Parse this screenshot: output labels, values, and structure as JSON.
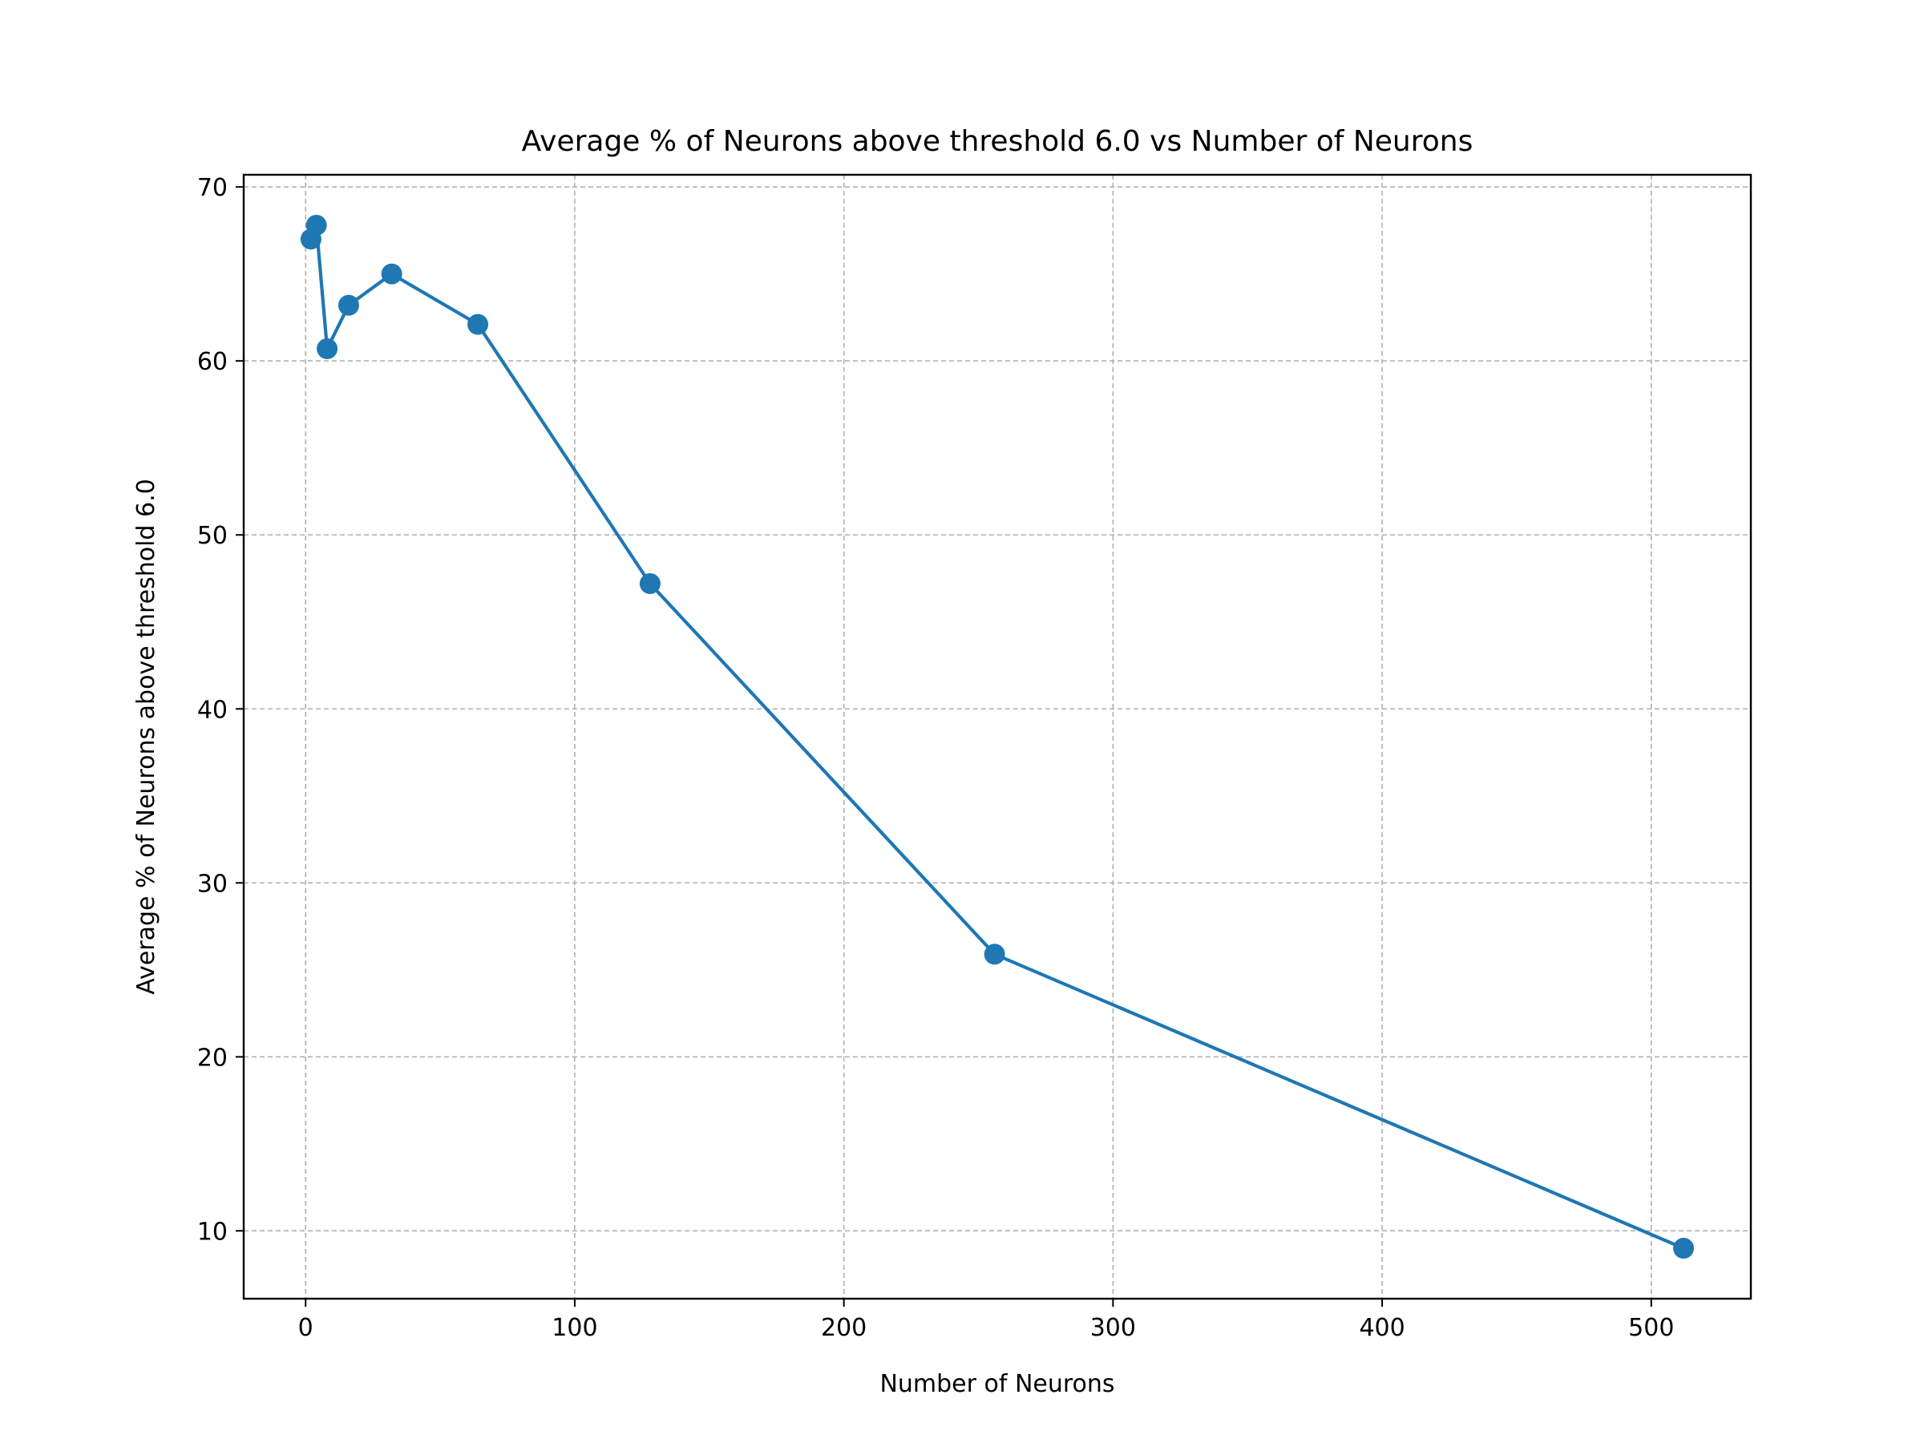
{
  "chart_data": {
    "type": "line",
    "title": "Average % of Neurons above threshold 6.0 vs Number of Neurons",
    "xlabel": "Number of Neurons",
    "ylabel": "Average % of Neurons above threshold 6.0",
    "xlim": [
      -23,
      537
    ],
    "ylim": [
      6.1,
      70.7
    ],
    "xticks": [
      0,
      100,
      200,
      300,
      400,
      500
    ],
    "yticks": [
      10,
      20,
      30,
      40,
      50,
      60,
      70
    ],
    "grid": true,
    "series": [
      {
        "color": "#1f77b4",
        "marker": "circle",
        "x": [
          2,
          4,
          8,
          16,
          32,
          64,
          128,
          256,
          512
        ],
        "y": [
          67.0,
          67.8,
          60.7,
          63.2,
          65.0,
          62.1,
          47.2,
          25.9,
          9.0
        ]
      }
    ]
  }
}
